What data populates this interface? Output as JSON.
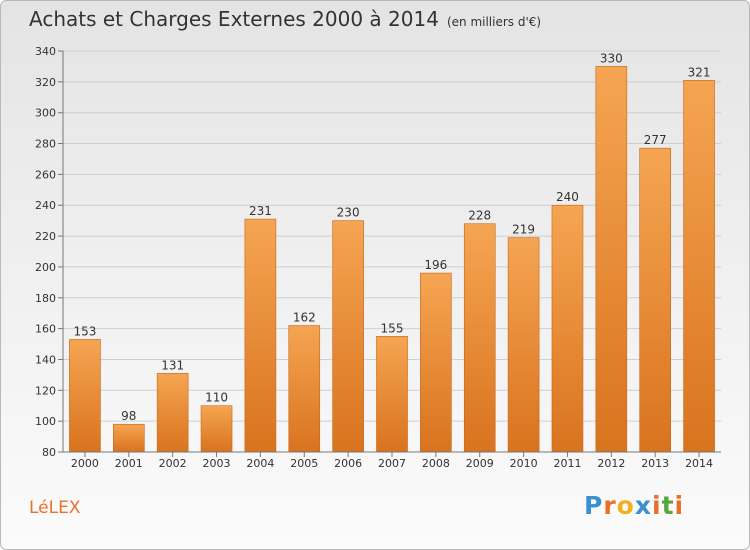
{
  "title": "Achats et Charges Externes 2000 à 2014",
  "subtitle": "(en milliers d'€)",
  "commune": "LéLEX",
  "logo": {
    "text": "Proxiti",
    "letters": [
      "P",
      "r",
      "o",
      "x",
      "i",
      "t",
      "i"
    ],
    "colors": [
      "#3a8fd0",
      "#e8702a",
      "#f2b01e",
      "#3a8fd0",
      "#e8702a",
      "#56a83c",
      "#e8702a"
    ]
  },
  "chart_data": {
    "type": "bar",
    "categories": [
      "2000",
      "2001",
      "2002",
      "2003",
      "2004",
      "2005",
      "2006",
      "2007",
      "2008",
      "2009",
      "2010",
      "2011",
      "2012",
      "2013",
      "2014"
    ],
    "values": [
      153,
      98,
      131,
      110,
      231,
      162,
      230,
      155,
      196,
      228,
      219,
      240,
      330,
      277,
      321
    ],
    "ylim": [
      80,
      340
    ],
    "yticks": [
      80,
      100,
      120,
      140,
      160,
      180,
      200,
      220,
      240,
      260,
      280,
      300,
      320,
      340
    ],
    "grid": true,
    "bar_color": "#f0963c"
  }
}
